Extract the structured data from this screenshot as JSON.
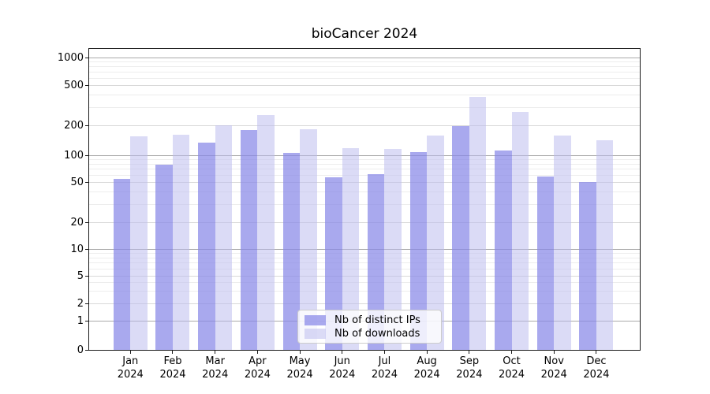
{
  "title": "bioCancer 2024",
  "chart_data": {
    "type": "bar",
    "title": "bioCancer 2024",
    "categories": [
      "Jan",
      "Feb",
      "Mar",
      "Apr",
      "May",
      "Jun",
      "Jul",
      "Aug",
      "Sep",
      "Oct",
      "Nov",
      "Dec"
    ],
    "x_year_label": "2024",
    "series": [
      {
        "name": "Nb of distinct IPs",
        "color": "#a9a9f0",
        "base_color": "#8888e8",
        "opacity": 0.72,
        "values": [
          55,
          78,
          135,
          182,
          105,
          57,
          62,
          107,
          200,
          112,
          58,
          51
        ]
      },
      {
        "name": "Nb of downloads",
        "color": "#d9d9f6",
        "base_color": "#bbbbee",
        "opacity": 0.53,
        "values": [
          156,
          161,
          202,
          257,
          184,
          119,
          117,
          159,
          387,
          272,
          159,
          141
        ]
      }
    ],
    "yscale": "pseudo-log",
    "ylim": [
      0,
      1000
    ],
    "yticks": [
      0,
      1,
      2,
      5,
      10,
      20,
      50,
      100,
      200,
      500,
      1000
    ],
    "yticks_minor": [
      3,
      4,
      6,
      7,
      8,
      9,
      30,
      40,
      60,
      70,
      80,
      90,
      300,
      400,
      600,
      700,
      800,
      900
    ],
    "grid": "on",
    "legend_position": "bottom-center"
  },
  "colors": {
    "grid_major_decade": "#a9a9a9",
    "grid_mid": "#d9d9d9",
    "grid_minor": "#ededed",
    "spine": "#1a1a1a",
    "text": "#000000",
    "legend_border": "#cccccc",
    "legend_bg": "rgba(255,255,255,0.8)"
  }
}
